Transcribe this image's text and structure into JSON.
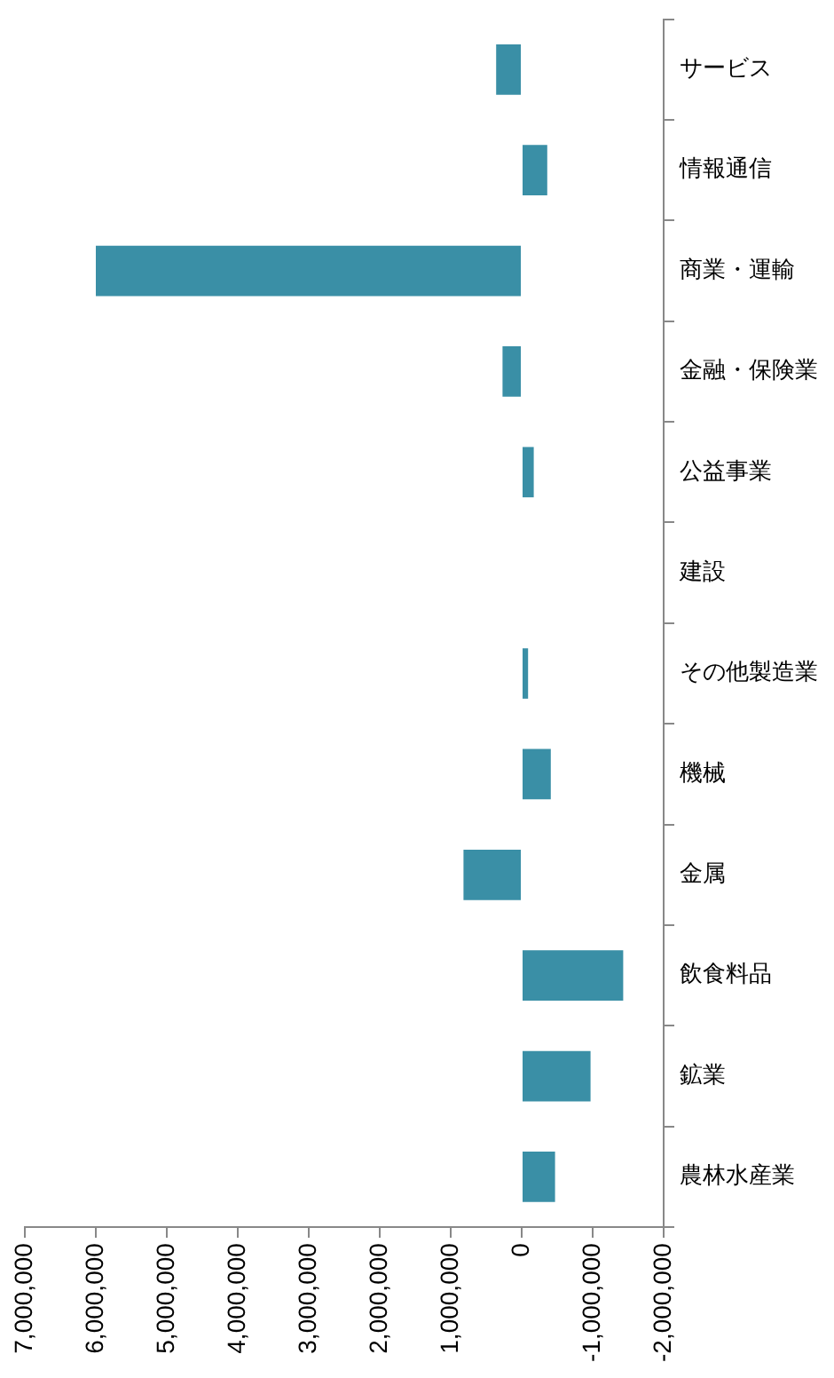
{
  "chart_data": {
    "type": "bar",
    "orientation": "horizontal",
    "categories": [
      "サービス",
      "情報通信",
      "商業・運輸",
      "金融・保険業",
      "公益事業",
      "建設",
      "その他製造業",
      "機械",
      "金属",
      "飲食料品",
      "鉱業",
      "農林水産業"
    ],
    "values": [
      360000,
      -360000,
      6000000,
      270000,
      -170000,
      0,
      -90000,
      -410000,
      820000,
      -1430000,
      -970000,
      -470000
    ],
    "color": "#3a8fa6",
    "xlim": [
      7000000,
      -2000000
    ],
    "xticks": [
      {
        "value": 7000000,
        "label": "7,000,000"
      },
      {
        "value": 6000000,
        "label": "6,000,000"
      },
      {
        "value": 5000000,
        "label": "5,000,000"
      },
      {
        "value": 4000000,
        "label": "4,000,000"
      },
      {
        "value": 3000000,
        "label": "3,000,000"
      },
      {
        "value": 2000000,
        "label": "2,000,000"
      },
      {
        "value": 1000000,
        "label": "1,000,000"
      },
      0,
      {
        "value": -1000000,
        "label": "-1,000,000"
      },
      {
        "value": -2000000,
        "label": "-2,000,000"
      }
    ]
  }
}
